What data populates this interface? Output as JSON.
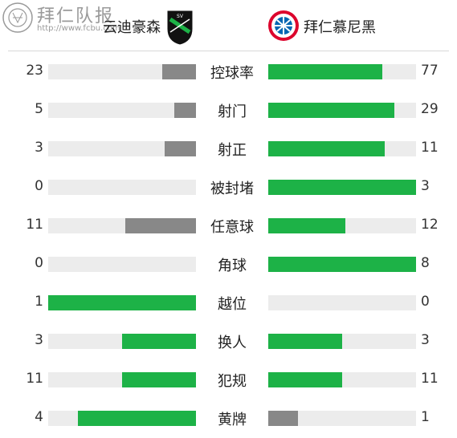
{
  "header": {
    "site_name": "拜仁队报",
    "site_url": "http://www.fcbu.com",
    "home_team": "云迪豪森",
    "away_team": "拜仁慕尼黑"
  },
  "colors": {
    "leader": "#1db247",
    "trailer": "#888888",
    "track": "#ececec",
    "bayern_red": "#dc052d"
  },
  "icons": {
    "site_logo": "bayern-crest-icon",
    "home_crest": "sv-sandhausen-crest-icon",
    "away_crest": "fc-bayern-crest-icon"
  },
  "stats": [
    {
      "label": "控球率",
      "home": "23",
      "away": "77",
      "home_fraction": 0.23,
      "away_fraction": 0.77
    },
    {
      "label": "射门",
      "home": "5",
      "away": "29",
      "home_fraction": 0.147,
      "away_fraction": 0.853
    },
    {
      "label": "射正",
      "home": "3",
      "away": "11",
      "home_fraction": 0.214,
      "away_fraction": 0.786
    },
    {
      "label": "被封堵",
      "home": "0",
      "away": "3",
      "home_fraction": 0,
      "away_fraction": 1
    },
    {
      "label": "任意球",
      "home": "11",
      "away": "12",
      "home_fraction": 0.478,
      "away_fraction": 0.522
    },
    {
      "label": "角球",
      "home": "0",
      "away": "8",
      "home_fraction": 0,
      "away_fraction": 1
    },
    {
      "label": "越位",
      "home": "1",
      "away": "0",
      "home_fraction": 1,
      "away_fraction": 0
    },
    {
      "label": "换人",
      "home": "3",
      "away": "3",
      "home_fraction": 0.5,
      "away_fraction": 0.5
    },
    {
      "label": "犯规",
      "home": "11",
      "away": "11",
      "home_fraction": 0.5,
      "away_fraction": 0.5
    },
    {
      "label": "黄牌",
      "home": "4",
      "away": "1",
      "home_fraction": 0.8,
      "away_fraction": 0.2
    }
  ]
}
